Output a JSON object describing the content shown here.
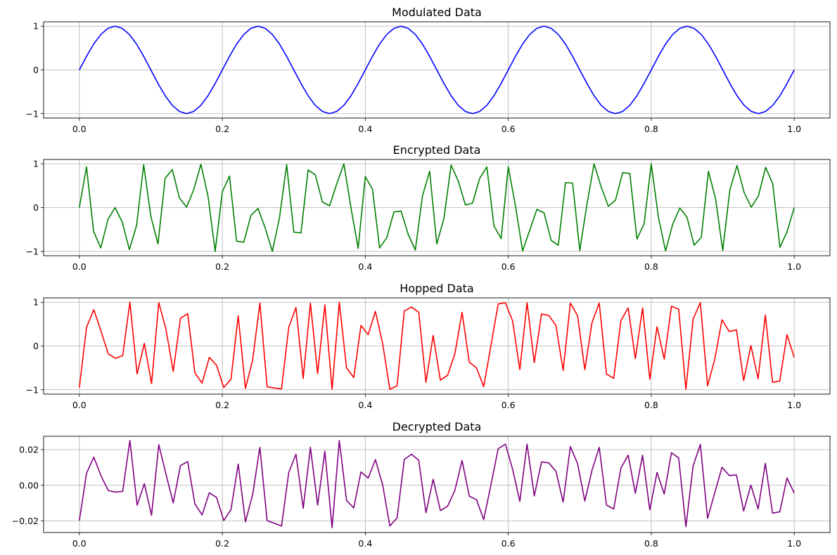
{
  "chart_data": [
    {
      "type": "line",
      "title": "Modulated Data",
      "color": "#0000ff",
      "grid": true,
      "xlim": [
        -0.05,
        1.05
      ],
      "ylim": [
        -1.1,
        1.1
      ],
      "xticks": [
        "0.0",
        "0.2",
        "0.4",
        "0.6",
        "0.8",
        "1.0"
      ],
      "yticks": [
        {
          "v": 1,
          "label": "1"
        },
        {
          "v": 0,
          "label": "0"
        },
        {
          "v": -1,
          "label": "−1"
        }
      ],
      "x_range": [
        0,
        1
      ],
      "values": [
        0,
        0.31,
        0.59,
        0.81,
        0.95,
        1,
        0.95,
        0.81,
        0.59,
        0.31,
        0,
        -0.31,
        -0.59,
        -0.81,
        -0.95,
        -1,
        -0.95,
        -0.81,
        -0.59,
        -0.31,
        0,
        0.31,
        0.59,
        0.81,
        0.95,
        1,
        0.95,
        0.81,
        0.59,
        0.31,
        0,
        -0.31,
        -0.59,
        -0.81,
        -0.95,
        -1,
        -0.95,
        -0.81,
        -0.59,
        -0.31,
        0,
        0.31,
        0.59,
        0.81,
        0.95,
        1,
        0.95,
        0.81,
        0.59,
        0.31,
        0,
        -0.31,
        -0.59,
        -0.81,
        -0.95,
        -1,
        -0.95,
        -0.81,
        -0.59,
        -0.31,
        0,
        0.31,
        0.59,
        0.81,
        0.95,
        1,
        0.95,
        0.81,
        0.59,
        0.31,
        0,
        -0.31,
        -0.59,
        -0.81,
        -0.95,
        -1,
        -0.95,
        -0.81,
        -0.59,
        -0.31,
        0,
        0.31,
        0.59,
        0.81,
        0.95,
        1,
        0.95,
        0.81,
        0.59,
        0.31,
        0,
        -0.31,
        -0.59,
        -0.81,
        -0.95,
        -1,
        -0.95,
        -0.81,
        -0.59,
        -0.31,
        0
      ]
    },
    {
      "type": "line",
      "title": "Encrypted Data",
      "color": "#008000",
      "grid": true,
      "xlim": [
        -0.05,
        1.05
      ],
      "ylim": [
        -1.1,
        1.1
      ],
      "xticks": [
        "0.0",
        "0.2",
        "0.4",
        "0.6",
        "0.8",
        "1.0"
      ],
      "yticks": [
        {
          "v": 1,
          "label": "1"
        },
        {
          "v": 0,
          "label": "0"
        },
        {
          "v": -1,
          "label": "−1"
        }
      ],
      "x_range": [
        0,
        1
      ],
      "values": [
        0,
        0.93,
        -0.55,
        -0.92,
        -0.27,
        0,
        -0.33,
        -0.96,
        -0.41,
        0.98,
        -0.2,
        -0.83,
        0.67,
        0.87,
        0.22,
        0.01,
        0.41,
        0.99,
        0.26,
        -1,
        0.36,
        0.72,
        -0.77,
        -0.79,
        -0.18,
        -0.02,
        -0.47,
        -1,
        -0.23,
        0.98,
        -0.56,
        -0.58,
        0.86,
        0.75,
        0.13,
        0.04,
        0.54,
        1,
        -0.01,
        -0.93,
        0.71,
        0.42,
        -0.92,
        -0.69,
        -0.1,
        -0.08,
        -0.61,
        -0.97,
        0.27,
        0.83,
        -0.83,
        -0.25,
        0.97,
        0.61,
        0.06,
        0.1,
        0.67,
        0.93,
        -0.42,
        -0.71,
        0.93,
        0.04,
        -0.99,
        -0.52,
        -0.04,
        -0.12,
        -0.75,
        -0.86,
        0.57,
        0.56,
        -0.98,
        0.07,
        1,
        0.47,
        0.03,
        0.17,
        0.8,
        0.78,
        -0.72,
        -0.37,
        1,
        -0.22,
        -0.99,
        -0.38,
        -0.01,
        -0.22,
        -0.86,
        -0.68,
        0.83,
        0.2,
        -0.98,
        0.41,
        0.96,
        0.34,
        0.01,
        0.27,
        0.92,
        0.54,
        -0.91,
        -0.55,
        0
      ]
    },
    {
      "type": "line",
      "title": "Hopped Data",
      "color": "#ff0000",
      "grid": true,
      "xlim": [
        -0.05,
        1.05
      ],
      "ylim": [
        -1.1,
        1.1
      ],
      "xticks": [
        "0.0",
        "0.2",
        "0.4",
        "0.6",
        "0.8",
        "1.0"
      ],
      "yticks": [
        {
          "v": 1,
          "label": "1"
        },
        {
          "v": 0,
          "label": "0"
        },
        {
          "v": -1,
          "label": "−1"
        }
      ],
      "x_range": [
        0,
        1
      ],
      "values": [
        -0.95,
        0.43,
        0.83,
        0.34,
        -0.18,
        -0.28,
        -0.22,
        1,
        -0.64,
        0.06,
        -0.86,
        0.99,
        0.38,
        -0.58,
        0.63,
        0.74,
        -0.61,
        -0.85,
        -0.26,
        -0.44,
        -0.95,
        -0.76,
        0.69,
        -0.97,
        -0.32,
        0.98,
        -0.93,
        -0.96,
        -0.98,
        0.43,
        0.88,
        -0.74,
        0.98,
        -0.63,
        0.94,
        -0.99,
        1,
        -0.5,
        -0.72,
        0.47,
        0.26,
        0.79,
        0.06,
        -0.99,
        -0.91,
        0.8,
        0.89,
        0.77,
        -0.83,
        0.24,
        -0.78,
        -0.67,
        -0.18,
        0.77,
        -0.37,
        -0.5,
        -0.93,
        0.01,
        0.96,
        0.99,
        0.57,
        -0.54,
        0.99,
        -0.38,
        0.73,
        0.7,
        0.47,
        -0.56,
        0.98,
        0.69,
        -0.54,
        0.54,
        0.98,
        -0.64,
        -0.74,
        0.58,
        0.87,
        -0.29,
        0.87,
        -0.76,
        0.44,
        -0.3,
        0.91,
        0.84,
        -0.99,
        0.62,
        0.99,
        -0.91,
        -0.3,
        0.6,
        0.33,
        0.37,
        -0.79,
        0.01,
        -0.75,
        0.71,
        -0.83,
        -0.8,
        0.26,
        -0.26
      ]
    },
    {
      "type": "line",
      "title": "Decrypted Data",
      "color": "#800080",
      "grid": true,
      "xlim": [
        -0.05,
        1.05
      ],
      "ylim": [
        -0.0265,
        0.0275
      ],
      "xticks": [
        "0.0",
        "0.2",
        "0.4",
        "0.6",
        "0.8",
        "1.0"
      ],
      "yticks": [
        {
          "v": 0.02,
          "label": "0.02"
        },
        {
          "v": 0,
          "label": "0.00"
        },
        {
          "v": -0.02,
          "label": "−0.02"
        }
      ],
      "x_range": [
        0,
        1
      ],
      "values": [
        -0.0198,
        0.0068,
        0.0158,
        0.0053,
        -0.0029,
        -0.0038,
        -0.0034,
        0.0251,
        -0.0112,
        0.0009,
        -0.0168,
        0.0228,
        0.0062,
        -0.0098,
        0.011,
        0.0133,
        -0.0104,
        -0.0166,
        -0.0042,
        -0.0068,
        -0.0198,
        -0.0136,
        0.0119,
        -0.0205,
        -0.0052,
        0.0213,
        -0.0198,
        -0.0213,
        -0.0228,
        0.0072,
        0.0174,
        -0.0129,
        0.0213,
        -0.0111,
        0.0191,
        -0.0238,
        0.0251,
        -0.0085,
        -0.0127,
        0.0075,
        0.004,
        0.0144,
        0.0003,
        -0.0228,
        -0.0183,
        0.0145,
        0.0174,
        0.0141,
        -0.0154,
        0.0034,
        -0.0142,
        -0.0117,
        -0.0029,
        0.0139,
        -0.0061,
        -0.0081,
        -0.0193,
        0.0003,
        0.0205,
        0.0231,
        0.009,
        -0.009,
        0.0231,
        -0.006,
        0.0131,
        0.0126,
        0.0079,
        -0.0094,
        0.0217,
        0.0121,
        -0.0088,
        0.0085,
        0.0213,
        -0.0111,
        -0.0133,
        0.0096,
        0.0169,
        -0.0045,
        0.0169,
        -0.0138,
        0.0072,
        -0.0049,
        0.0183,
        0.0153,
        -0.0232,
        0.0109,
        0.0229,
        -0.0186,
        -0.0041,
        0.0101,
        0.0055,
        0.0058,
        -0.0144,
        0.0001,
        -0.0133,
        0.0123,
        -0.0156,
        -0.0149,
        0.0041,
        -0.0044
      ]
    }
  ]
}
